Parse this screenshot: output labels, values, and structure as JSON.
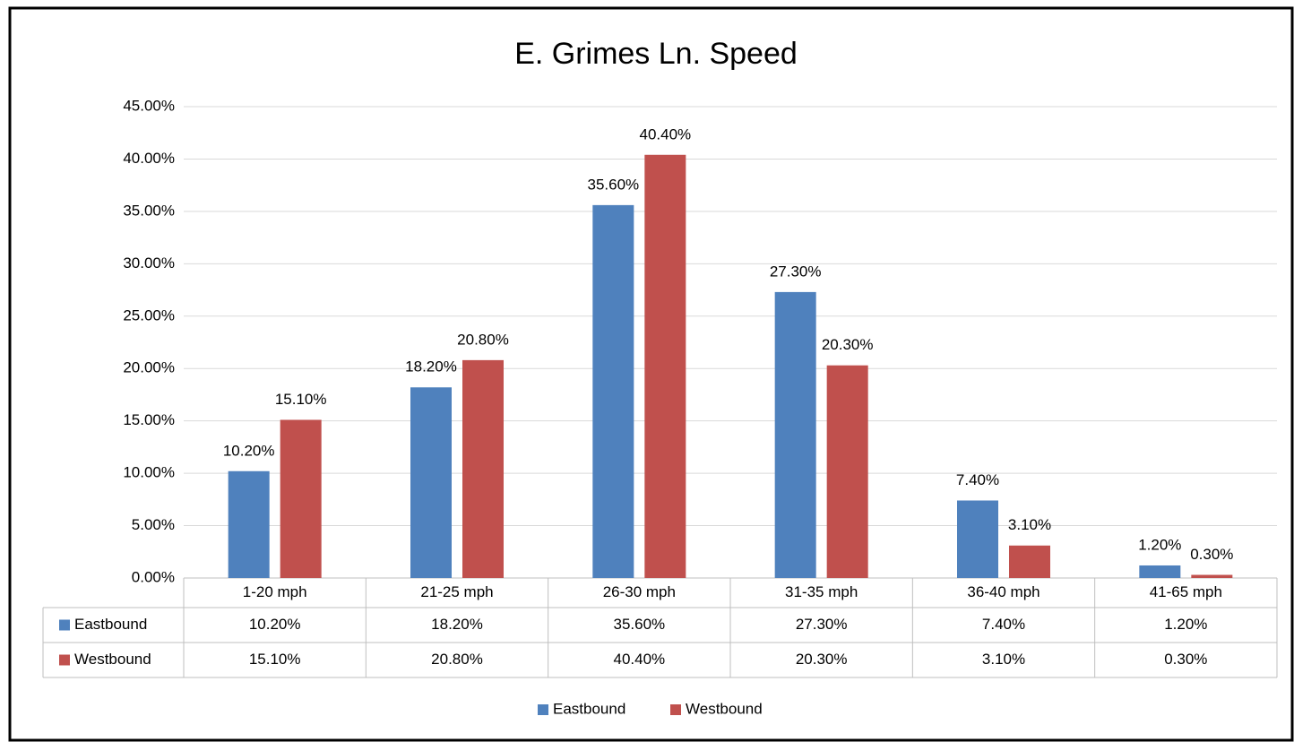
{
  "chart_data": {
    "type": "bar",
    "title": "E. Grimes Ln. Speed",
    "categories": [
      "1-20 mph",
      "21-25 mph",
      "26-30 mph",
      "31-35 mph",
      "36-40 mph",
      "41-65 mph"
    ],
    "series": [
      {
        "name": "Eastbound",
        "color": "#4f81bd",
        "values": [
          10.2,
          18.2,
          35.6,
          27.3,
          7.4,
          1.2
        ],
        "value_labels": [
          "10.20%",
          "18.20%",
          "35.60%",
          "27.30%",
          "7.40%",
          "1.20%"
        ]
      },
      {
        "name": "Westbound",
        "color": "#c0504d",
        "values": [
          15.1,
          20.8,
          40.4,
          20.3,
          3.1,
          0.3
        ],
        "value_labels": [
          "15.10%",
          "20.80%",
          "40.40%",
          "20.30%",
          "3.10%",
          "0.30%"
        ]
      }
    ],
    "ylim": [
      0,
      45
    ],
    "yticks": [
      {
        "value": 0,
        "label": "0.00%"
      },
      {
        "value": 5,
        "label": "5.00%"
      },
      {
        "value": 10,
        "label": "10.00%"
      },
      {
        "value": 15,
        "label": "15.00%"
      },
      {
        "value": 20,
        "label": "20.00%"
      },
      {
        "value": 25,
        "label": "25.00%"
      },
      {
        "value": 30,
        "label": "30.00%"
      },
      {
        "value": 35,
        "label": "35.00%"
      },
      {
        "value": 40,
        "label": "40.00%"
      },
      {
        "value": 45,
        "label": "45.00%"
      }
    ],
    "grid": true,
    "legend": "bottom"
  }
}
